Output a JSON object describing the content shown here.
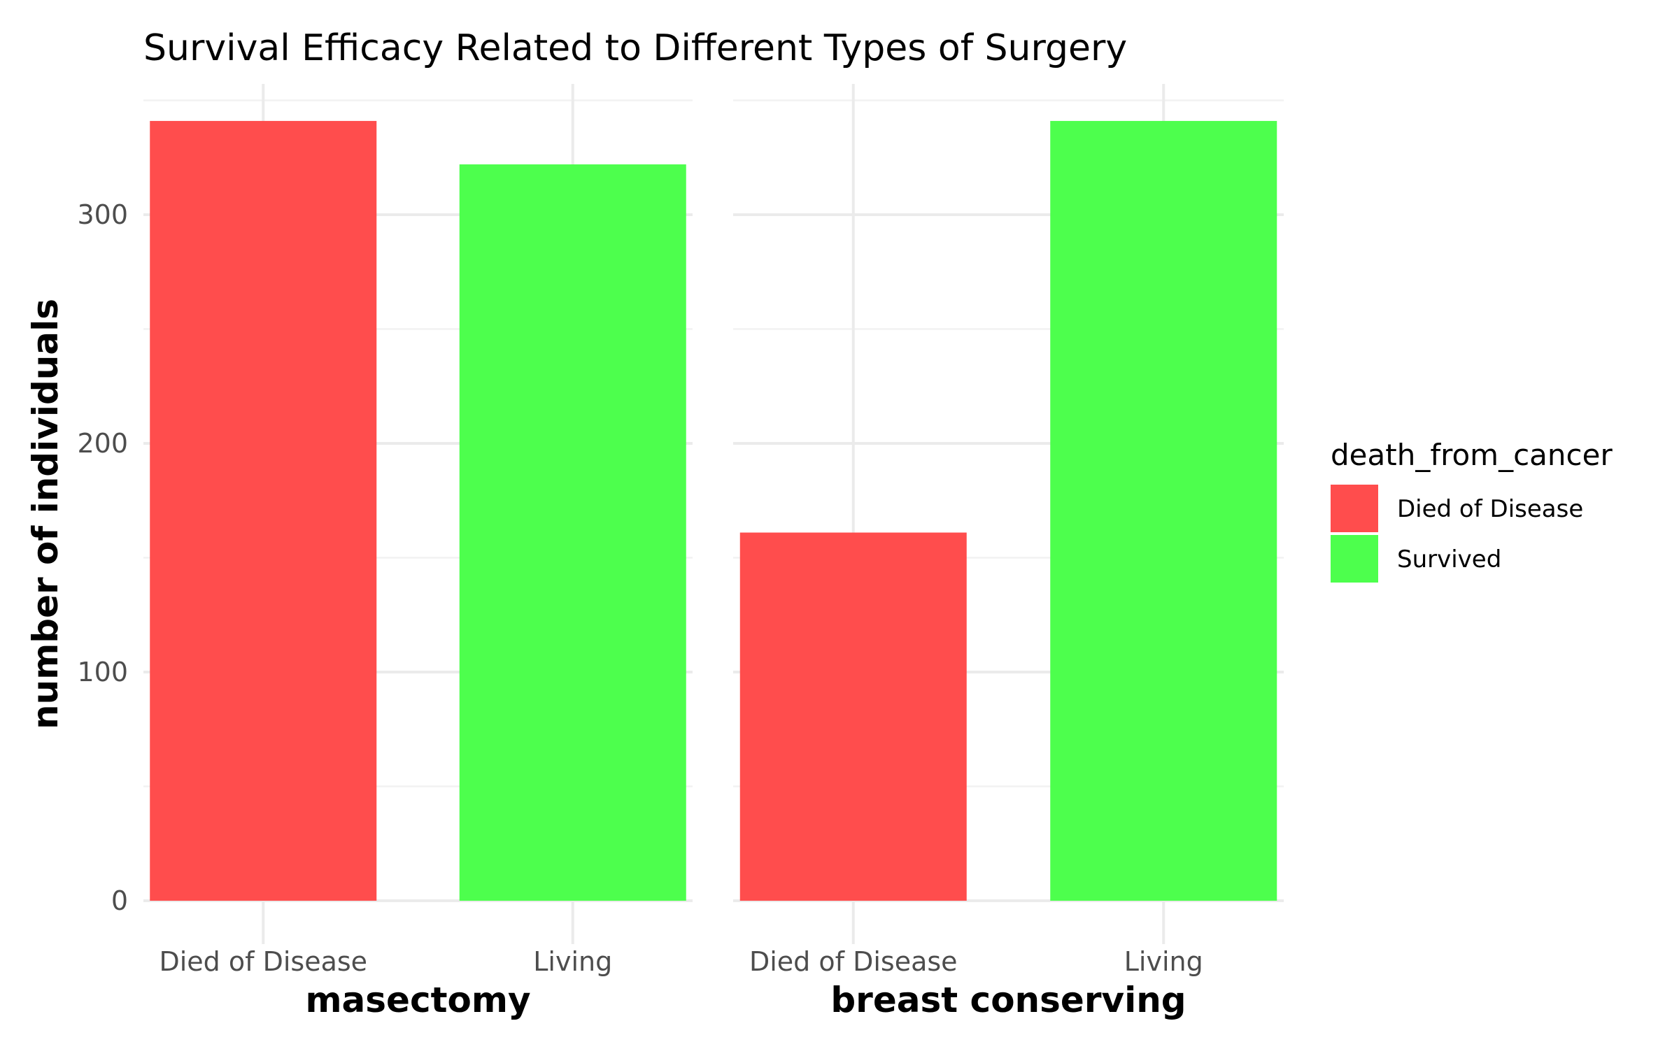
{
  "chart_data": {
    "type": "bar",
    "title": "Survival Efficacy Related to Different Types of Surgery",
    "ylabel": "number of individuals",
    "legend_title": "death_from_cancer",
    "legend_position": "right",
    "ylim": [
      0,
      350
    ],
    "grid": true,
    "legend": [
      {
        "name": "Died of Disease",
        "color": "#ff4d4d"
      },
      {
        "name": "Survived",
        "color": "#4dff4d"
      }
    ],
    "panels": [
      {
        "name": "masectomy",
        "y_ticks_shown": true,
        "categories": [
          "Died of Disease",
          "Living"
        ],
        "values": [
          341,
          322
        ],
        "colors": [
          "#ff4d4d",
          "#4dff4d"
        ]
      },
      {
        "name": "breast conserving",
        "y_ticks_shown": false,
        "categories": [
          "Died of Disease",
          "Living"
        ],
        "values": [
          161,
          341
        ],
        "colors": [
          "#ff4d4d",
          "#4dff4d"
        ]
      }
    ],
    "y_ticks": [
      "0",
      "100",
      "200",
      "300"
    ]
  }
}
